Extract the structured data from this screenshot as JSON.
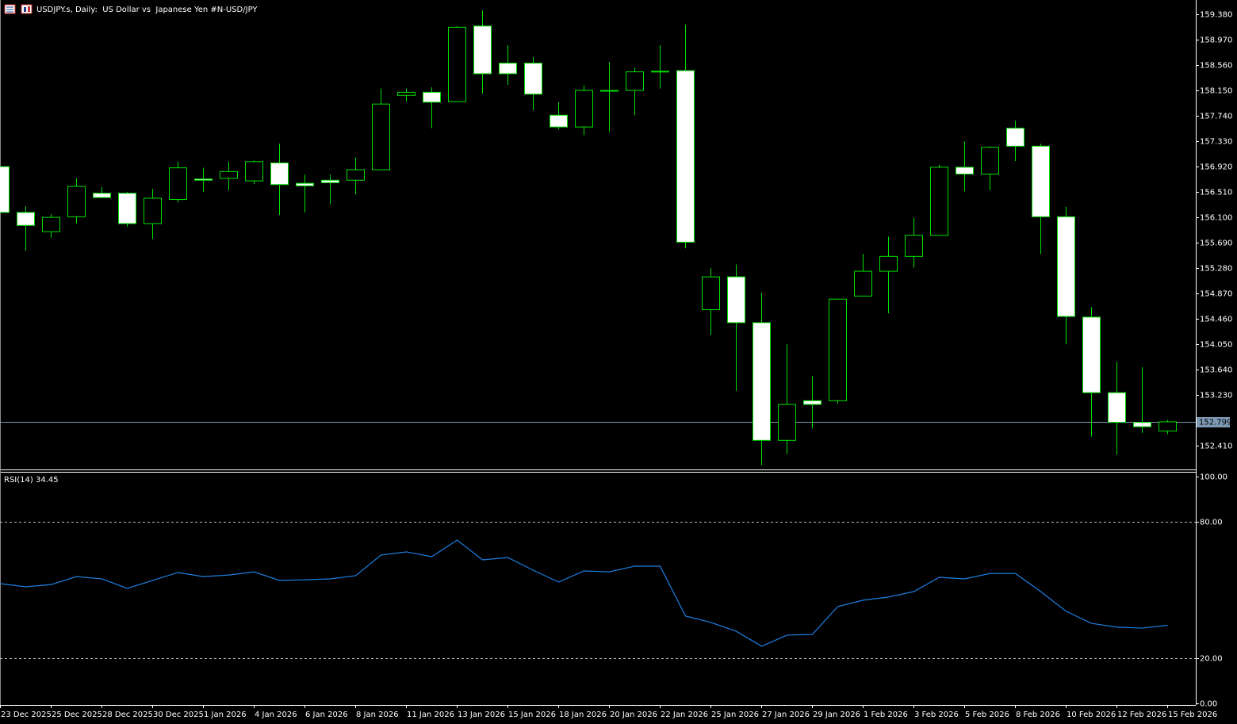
{
  "chart_data": [
    {
      "type": "candlestick",
      "title": "USDJPY.s, Daily:  US Dollar vs  Japanese Yen #N-USD/JPY",
      "categories": [
        "23 Dec 2025",
        null,
        "25 Dec 2025",
        null,
        "28 Dec 2025",
        null,
        "30 Dec 2025",
        null,
        "1 Jan 2026",
        null,
        "4 Jan 2026",
        null,
        "6 Jan 2026",
        null,
        "8 Jan 2026",
        null,
        "11 Jan 2026",
        null,
        "13 Jan 2026",
        null,
        "15 Jan 2026",
        null,
        "18 Jan 2026",
        null,
        "20 Jan 2026",
        null,
        "22 Jan 2026",
        null,
        "25 Jan 2026",
        null,
        "27 Jan 2026",
        null,
        "29 Jan 2026",
        null,
        "1 Feb 2026",
        null,
        "3 Feb 2026",
        null,
        "5 Feb 2026",
        null,
        "8 Feb 2026",
        null,
        "10 Feb 2026",
        null,
        "12 Feb 2026",
        null,
        "15 Feb 2026"
      ],
      "open": [
        156.92,
        156.18,
        155.87,
        156.11,
        156.49,
        156.49,
        156.0,
        156.39,
        156.72,
        156.73,
        156.69,
        156.98,
        156.65,
        156.7,
        156.7,
        156.87,
        158.07,
        158.12,
        157.97,
        159.19,
        158.59,
        158.59,
        157.75,
        157.56,
        158.15,
        158.15,
        158.46,
        158.47,
        154.61,
        155.14,
        154.4,
        152.5,
        153.14,
        153.14,
        154.83,
        155.23,
        155.47,
        155.81,
        156.91,
        156.8,
        157.54,
        157.25,
        156.11,
        154.49,
        153.27,
        152.79,
        152.65
      ],
      "high": [
        156.92,
        156.28,
        156.15,
        156.73,
        156.59,
        156.51,
        156.56,
        157.0,
        156.9,
        157.0,
        157.02,
        157.29,
        156.79,
        156.79,
        157.07,
        158.18,
        158.18,
        158.2,
        159.19,
        159.44,
        158.88,
        158.69,
        157.96,
        158.23,
        158.61,
        158.52,
        158.88,
        159.21,
        155.28,
        155.34,
        154.88,
        154.05,
        153.54,
        154.79,
        155.51,
        155.79,
        156.09,
        156.95,
        157.33,
        157.25,
        157.66,
        157.29,
        156.27,
        154.65,
        153.77,
        153.68,
        152.83
      ],
      "low": [
        156.18,
        155.56,
        155.77,
        156.0,
        156.41,
        155.95,
        155.75,
        156.34,
        156.51,
        156.54,
        156.64,
        156.14,
        156.18,
        156.31,
        156.47,
        156.87,
        157.97,
        157.54,
        157.97,
        158.1,
        158.24,
        157.83,
        157.52,
        157.43,
        157.48,
        157.75,
        158.18,
        155.6,
        154.2,
        153.3,
        152.1,
        152.28,
        152.69,
        153.09,
        154.83,
        154.55,
        155.29,
        155.81,
        156.52,
        156.54,
        157.01,
        155.51,
        154.05,
        152.56,
        152.27,
        152.62,
        152.6
      ],
      "close": [
        156.18,
        155.97,
        156.1,
        156.6,
        156.42,
        156.0,
        156.41,
        156.9,
        156.7,
        156.84,
        157.0,
        156.63,
        156.61,
        156.66,
        156.87,
        157.93,
        158.12,
        157.96,
        159.17,
        158.42,
        158.42,
        158.09,
        157.56,
        158.15,
        158.15,
        158.45,
        158.46,
        155.7,
        155.14,
        154.4,
        152.5,
        153.08,
        153.08,
        154.78,
        155.23,
        155.47,
        155.81,
        156.91,
        156.8,
        157.23,
        157.25,
        156.11,
        154.5,
        153.27,
        152.79,
        152.72,
        152.799
      ],
      "outline_color": "#00e000",
      "up_color": "#000000",
      "down_color": "#ffffff",
      "current_price": 152.799,
      "current_price_color": "#7d98b3",
      "ylim": [
        152.03,
        159.61
      ],
      "yticks": [
        {
          "value": 159.38,
          "label": "159.380"
        },
        {
          "value": 158.97,
          "label": "158.970"
        },
        {
          "value": 158.56,
          "label": "158.560"
        },
        {
          "value": 158.15,
          "label": "158.150"
        },
        {
          "value": 157.74,
          "label": "157.740"
        },
        {
          "value": 157.33,
          "label": "157.330"
        },
        {
          "value": 156.92,
          "label": "156.920"
        },
        {
          "value": 156.51,
          "label": "156.510"
        },
        {
          "value": 156.1,
          "label": "156.100"
        },
        {
          "value": 155.69,
          "label": "155.690"
        },
        {
          "value": 155.28,
          "label": "155.280"
        },
        {
          "value": 154.87,
          "label": "154.870"
        },
        {
          "value": 154.46,
          "label": "154.460"
        },
        {
          "value": 154.05,
          "label": "154.050"
        },
        {
          "value": 153.64,
          "label": "153.640"
        },
        {
          "value": 153.23,
          "label": "153.230"
        },
        {
          "value": 152.41,
          "label": "152.410"
        }
      ]
    },
    {
      "type": "line",
      "title": "RSI(14) 34.45",
      "values": [
        52.8,
        51.4,
        52.4,
        55.9,
        54.9,
        50.7,
        54.2,
        57.7,
        55.9,
        56.6,
        58.0,
        54.2,
        54.5,
        54.9,
        56.3,
        65.4,
        66.8,
        64.7,
        72.0,
        63.3,
        64.3,
        58.7,
        53.5,
        58.4,
        58.0,
        60.5,
        60.5,
        38.5,
        35.7,
        31.8,
        25.2,
        30.1,
        30.4,
        42.7,
        45.5,
        46.9,
        49.3,
        55.6,
        54.9,
        57.3,
        57.3,
        49.3,
        40.6,
        35.3,
        33.6,
        33.2,
        34.45
      ],
      "color": "#1e7fe0",
      "levels": [
        80,
        20
      ],
      "ylim": [
        0,
        100
      ],
      "yticks": [
        {
          "value": 100,
          "label": "100.00"
        },
        {
          "value": 80,
          "label": "80.00"
        },
        {
          "value": 20,
          "label": "20.00"
        },
        {
          "value": 0,
          "label": "0.00"
        }
      ]
    }
  ]
}
